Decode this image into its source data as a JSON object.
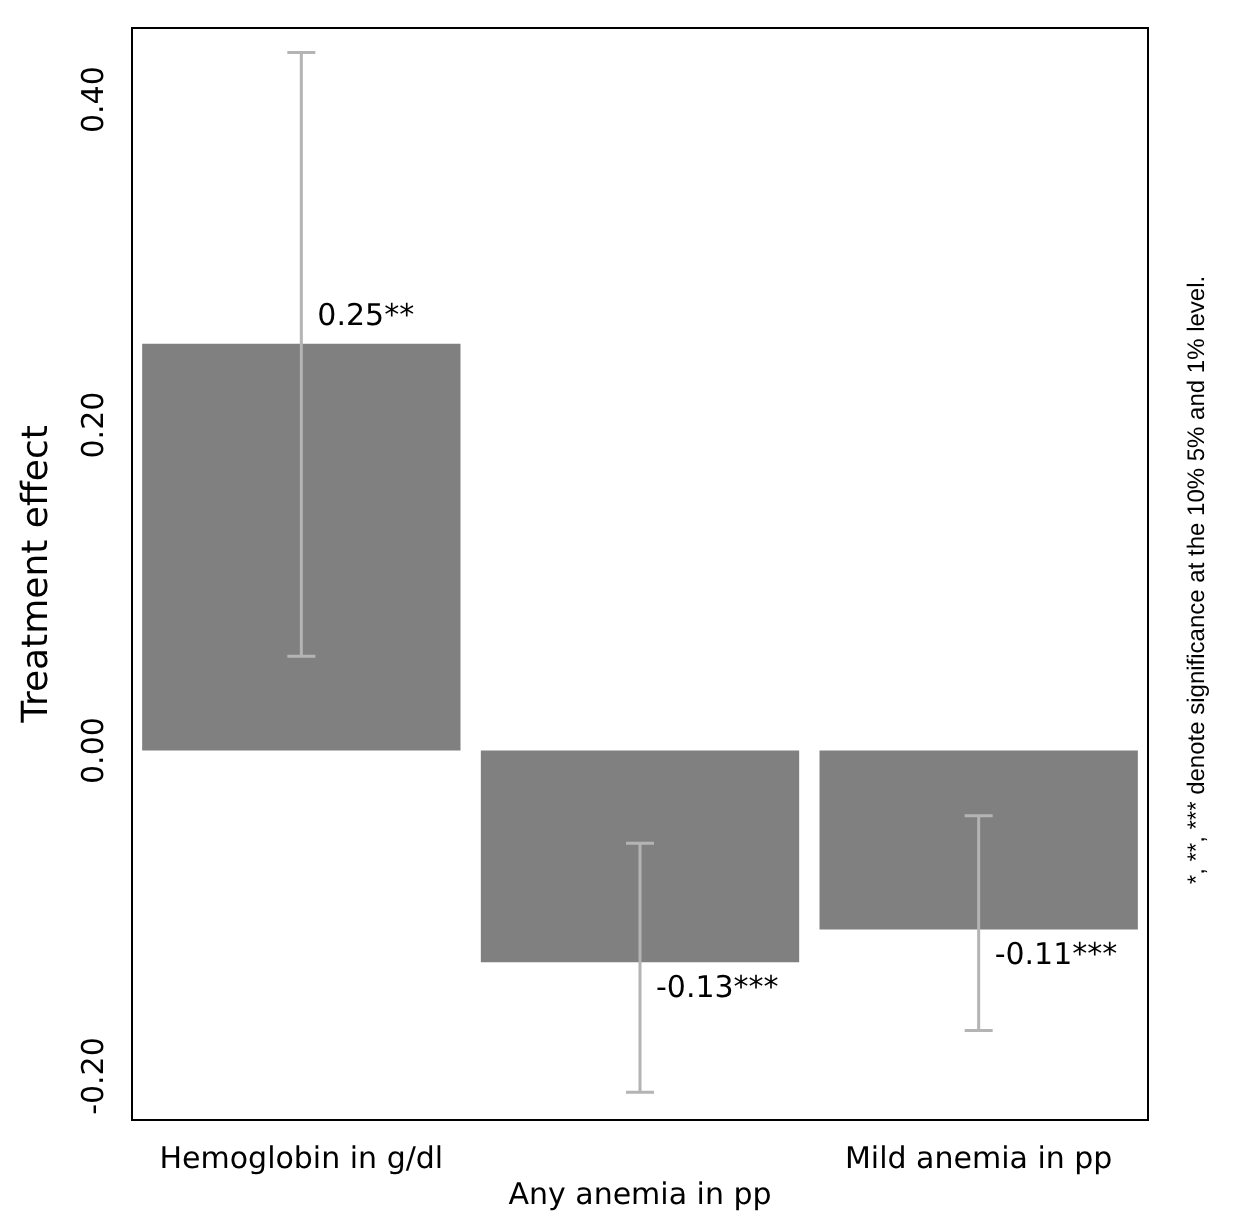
{
  "chart_data": {
    "type": "bar",
    "ylabel": "Treatment effect",
    "categories": [
      "Hemoglobin in g/dl",
      "Any anemia in pp",
      "Mild anemia in pp"
    ],
    "values": [
      0.25,
      -0.13,
      -0.11
    ],
    "color": "#808080",
    "errors": [
      [
        0.058,
        0.429
      ],
      [
        -0.21,
        -0.057
      ],
      [
        -0.172,
        -0.04
      ]
    ],
    "value_labels": [
      "0.25**",
      "-0.13***",
      "-0.11***"
    ],
    "ylim": [
      -0.227,
      0.444
    ],
    "yticks": [
      {
        "value": -0.2,
        "label": "-0.20"
      },
      {
        "value": 0,
        "label": "0.00"
      },
      {
        "value": 0.2,
        "label": "0.20"
      },
      {
        "value": 0.4,
        "label": "0.40"
      }
    ],
    "grid": false,
    "legend": false,
    "annotations": [
      "*, **, *** denote significance at the 10% 5% and 1% level."
    ]
  }
}
